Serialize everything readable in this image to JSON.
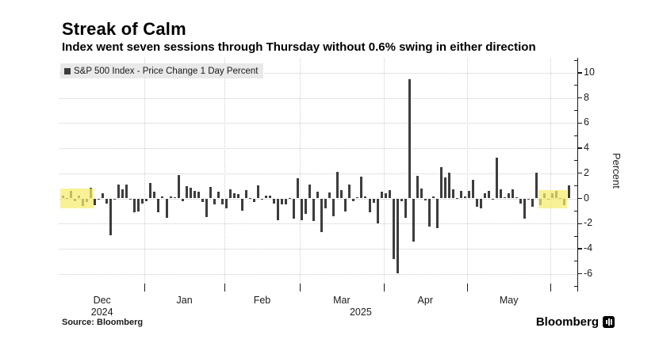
{
  "header": {
    "title": "Streak of Calm",
    "subtitle": "Index went seven sessions through Thursday without 0.6% swing in either direction"
  },
  "legend": {
    "label": "S&P 500 Index - Price Change 1 Day Percent"
  },
  "footer": {
    "source": "Source: Bloomberg",
    "brand": "Bloomberg"
  },
  "chart_data": {
    "type": "bar",
    "title": "Streak of Calm",
    "series_name": "S&P 500 Index - Price Change 1 Day Percent",
    "ylabel": "Percent",
    "ylim": [
      -7.4,
      11.2
    ],
    "grid": "dotted",
    "axis_side": "right",
    "y_major_ticks": [
      10,
      8,
      6,
      4,
      2,
      0,
      -2,
      -4,
      -6
    ],
    "y_minor_ticks": [
      11,
      9,
      7,
      5,
      3,
      1,
      -1,
      -3,
      -5,
      -7
    ],
    "x_month_labels": [
      "Dec",
      "Jan",
      "Feb",
      "Mar",
      "Apr",
      "May"
    ],
    "x_year_labels": [
      {
        "text": "2024",
        "month_index": 0,
        "dx": 0
      },
      {
        "text": "2025",
        "month_index": 3,
        "dx": 24
      }
    ],
    "month_start_indices": [
      0,
      21,
      41,
      60,
      81,
      102,
      123
    ],
    "dates": [
      "2024-12-02",
      "2024-12-03",
      "2024-12-04",
      "2024-12-05",
      "2024-12-06",
      "2024-12-09",
      "2024-12-10",
      "2024-12-11",
      "2024-12-12",
      "2024-12-13",
      "2024-12-16",
      "2024-12-17",
      "2024-12-18",
      "2024-12-19",
      "2024-12-20",
      "2024-12-23",
      "2024-12-24",
      "2024-12-26",
      "2024-12-27",
      "2024-12-30",
      "2024-12-31",
      "2025-01-02",
      "2025-01-03",
      "2025-01-06",
      "2025-01-07",
      "2025-01-08",
      "2025-01-10",
      "2025-01-13",
      "2025-01-14",
      "2025-01-15",
      "2025-01-16",
      "2025-01-17",
      "2025-01-21",
      "2025-01-22",
      "2025-01-23",
      "2025-01-24",
      "2025-01-27",
      "2025-01-28",
      "2025-01-29",
      "2025-01-30",
      "2025-01-31",
      "2025-02-03",
      "2025-02-04",
      "2025-02-05",
      "2025-02-06",
      "2025-02-07",
      "2025-02-10",
      "2025-02-11",
      "2025-02-12",
      "2025-02-13",
      "2025-02-14",
      "2025-02-18",
      "2025-02-19",
      "2025-02-20",
      "2025-02-21",
      "2025-02-24",
      "2025-02-25",
      "2025-02-26",
      "2025-02-27",
      "2025-02-28",
      "2025-03-03",
      "2025-03-04",
      "2025-03-05",
      "2025-03-06",
      "2025-03-07",
      "2025-03-10",
      "2025-03-11",
      "2025-03-12",
      "2025-03-13",
      "2025-03-14",
      "2025-03-17",
      "2025-03-18",
      "2025-03-19",
      "2025-03-20",
      "2025-03-21",
      "2025-03-24",
      "2025-03-25",
      "2025-03-26",
      "2025-03-27",
      "2025-03-28",
      "2025-03-31",
      "2025-04-01",
      "2025-04-02",
      "2025-04-03",
      "2025-04-04",
      "2025-04-07",
      "2025-04-08",
      "2025-04-09",
      "2025-04-10",
      "2025-04-11",
      "2025-04-14",
      "2025-04-15",
      "2025-04-16",
      "2025-04-17",
      "2025-04-21",
      "2025-04-22",
      "2025-04-23",
      "2025-04-24",
      "2025-04-25",
      "2025-04-28",
      "2025-04-29",
      "2025-04-30",
      "2025-05-01",
      "2025-05-02",
      "2025-05-05",
      "2025-05-06",
      "2025-05-07",
      "2025-05-08",
      "2025-05-09",
      "2025-05-12",
      "2025-05-13",
      "2025-05-14",
      "2025-05-15",
      "2025-05-16",
      "2025-05-19",
      "2025-05-20",
      "2025-05-21",
      "2025-05-22",
      "2025-05-23",
      "2025-05-27",
      "2025-05-28",
      "2025-05-29",
      "2025-05-30",
      "2025-06-02",
      "2025-06-03",
      "2025-06-04",
      "2025-06-05",
      "2025-06-06"
    ],
    "values": [
      0.24,
      0.05,
      0.61,
      -0.19,
      0.25,
      -0.61,
      -0.3,
      0.82,
      -0.54,
      -0.01,
      0.38,
      -0.39,
      -2.95,
      -0.09,
      1.09,
      0.73,
      1.1,
      -0.04,
      -1.11,
      -1.07,
      -0.43,
      -0.22,
      1.26,
      0.55,
      -1.11,
      0.16,
      -1.54,
      0.16,
      0.11,
      1.83,
      -0.21,
      1.0,
      0.88,
      0.61,
      0.53,
      -0.29,
      -1.46,
      0.92,
      -0.47,
      0.53,
      -0.5,
      -0.76,
      0.72,
      0.39,
      0.36,
      -0.95,
      0.67,
      0.03,
      -0.27,
      1.04,
      -0.01,
      0.24,
      0.24,
      -0.43,
      -1.71,
      -0.5,
      -0.47,
      0.01,
      -1.59,
      1.59,
      -1.76,
      -1.22,
      1.12,
      -1.78,
      0.55,
      -2.7,
      -0.76,
      0.49,
      -1.39,
      2.13,
      0.64,
      -1.07,
      1.08,
      -0.22,
      0.08,
      1.76,
      0.16,
      -1.12,
      -0.33,
      -1.97,
      0.55,
      0.38,
      0.67,
      -4.84,
      -5.97,
      -0.23,
      -1.57,
      9.52,
      -3.46,
      1.81,
      0.79,
      -0.17,
      -2.24,
      0.13,
      -2.36,
      2.51,
      1.67,
      2.03,
      0.74,
      0.06,
      0.58,
      0.15,
      0.63,
      1.47,
      -0.64,
      -0.77,
      0.43,
      0.58,
      -0.07,
      3.26,
      0.72,
      0.1,
      0.41,
      0.7,
      0.09,
      -0.39,
      -1.61,
      -0.04,
      -0.67,
      2.05,
      -0.56,
      0.4,
      -0.01,
      0.41,
      0.58,
      0.01,
      -0.53,
      1.03
    ],
    "highlights": [
      {
        "start_index": 0,
        "end_index": 7,
        "y_top": 0.79,
        "y_bottom": -0.79
      },
      {
        "start_index": 120,
        "end_index": 126,
        "y_top": 0.66,
        "y_bottom": -0.79
      }
    ],
    "colors": {
      "bar": "#3d3d3d",
      "highlight": "#f6ec6e",
      "legend_bg": "#e9e9e9",
      "grid": "#c9c9c9",
      "axis": "#1a1a1a"
    }
  }
}
